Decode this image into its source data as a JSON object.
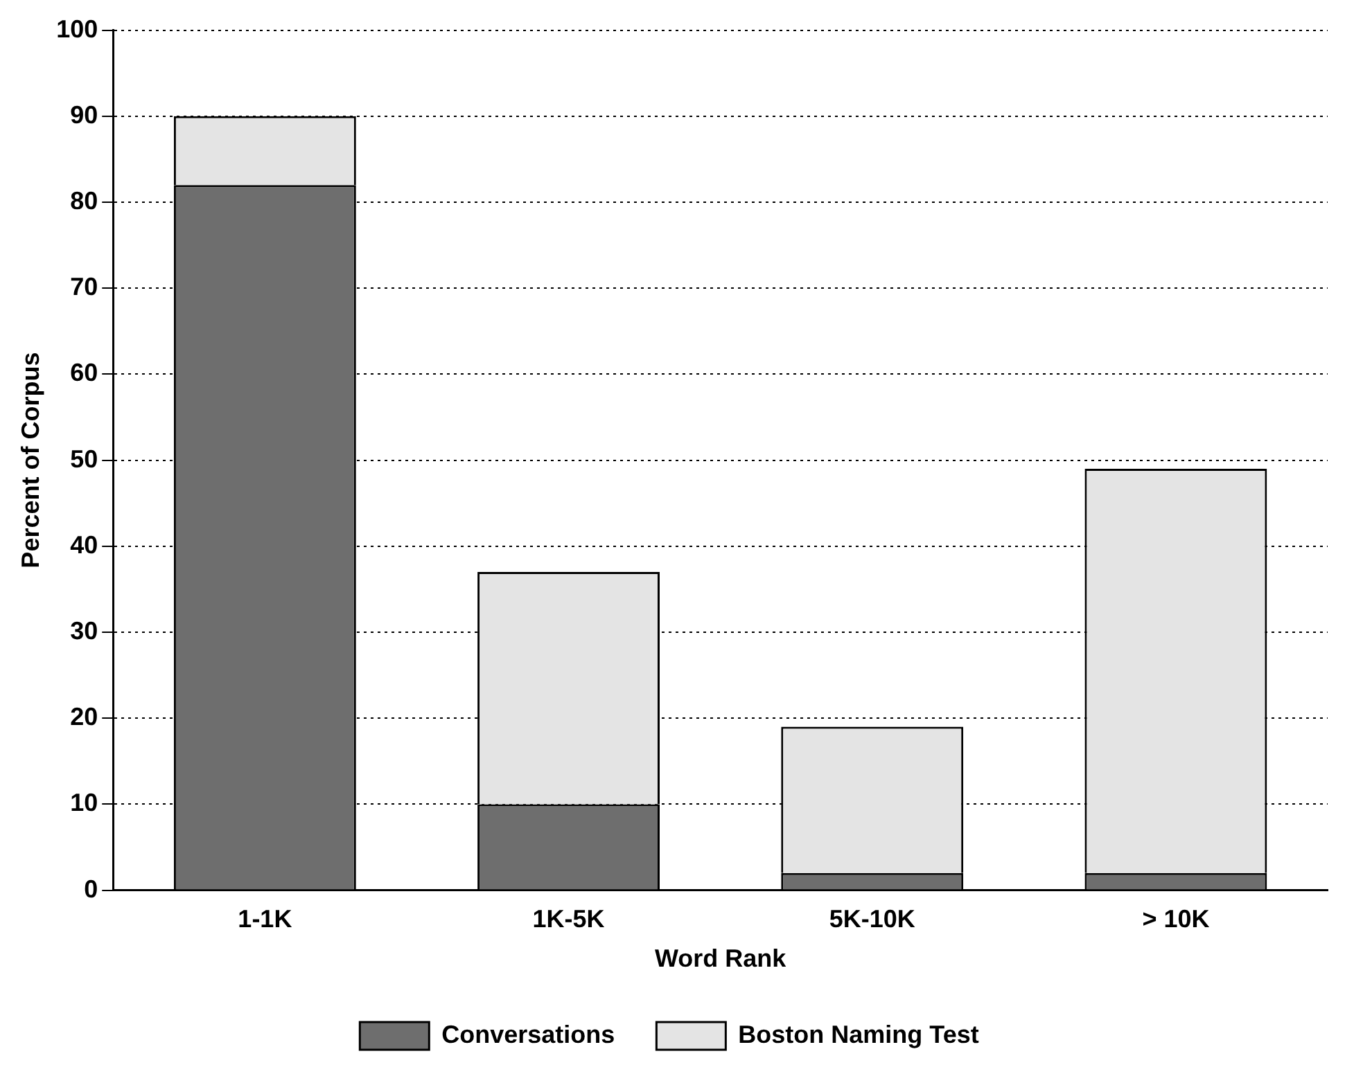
{
  "chart_data": {
    "type": "bar",
    "stacked": true,
    "xlabel": "Word Rank",
    "ylabel": "Percent of Corpus",
    "categories": [
      "1-1K",
      "1K-5K",
      "5K-10K",
      "> 10K"
    ],
    "series": [
      {
        "name": "Conversations",
        "color": "#6e6e6e",
        "values": [
          82,
          10,
          2,
          2
        ]
      },
      {
        "name": "Boston Naming Test",
        "color": "#e4e4e4",
        "values": [
          8,
          27,
          17,
          47
        ]
      }
    ],
    "ylim": [
      0,
      100
    ],
    "yticks": [
      0,
      10,
      20,
      30,
      40,
      50,
      60,
      70,
      80,
      90,
      100
    ],
    "grid": "y",
    "legend": "bottom"
  }
}
